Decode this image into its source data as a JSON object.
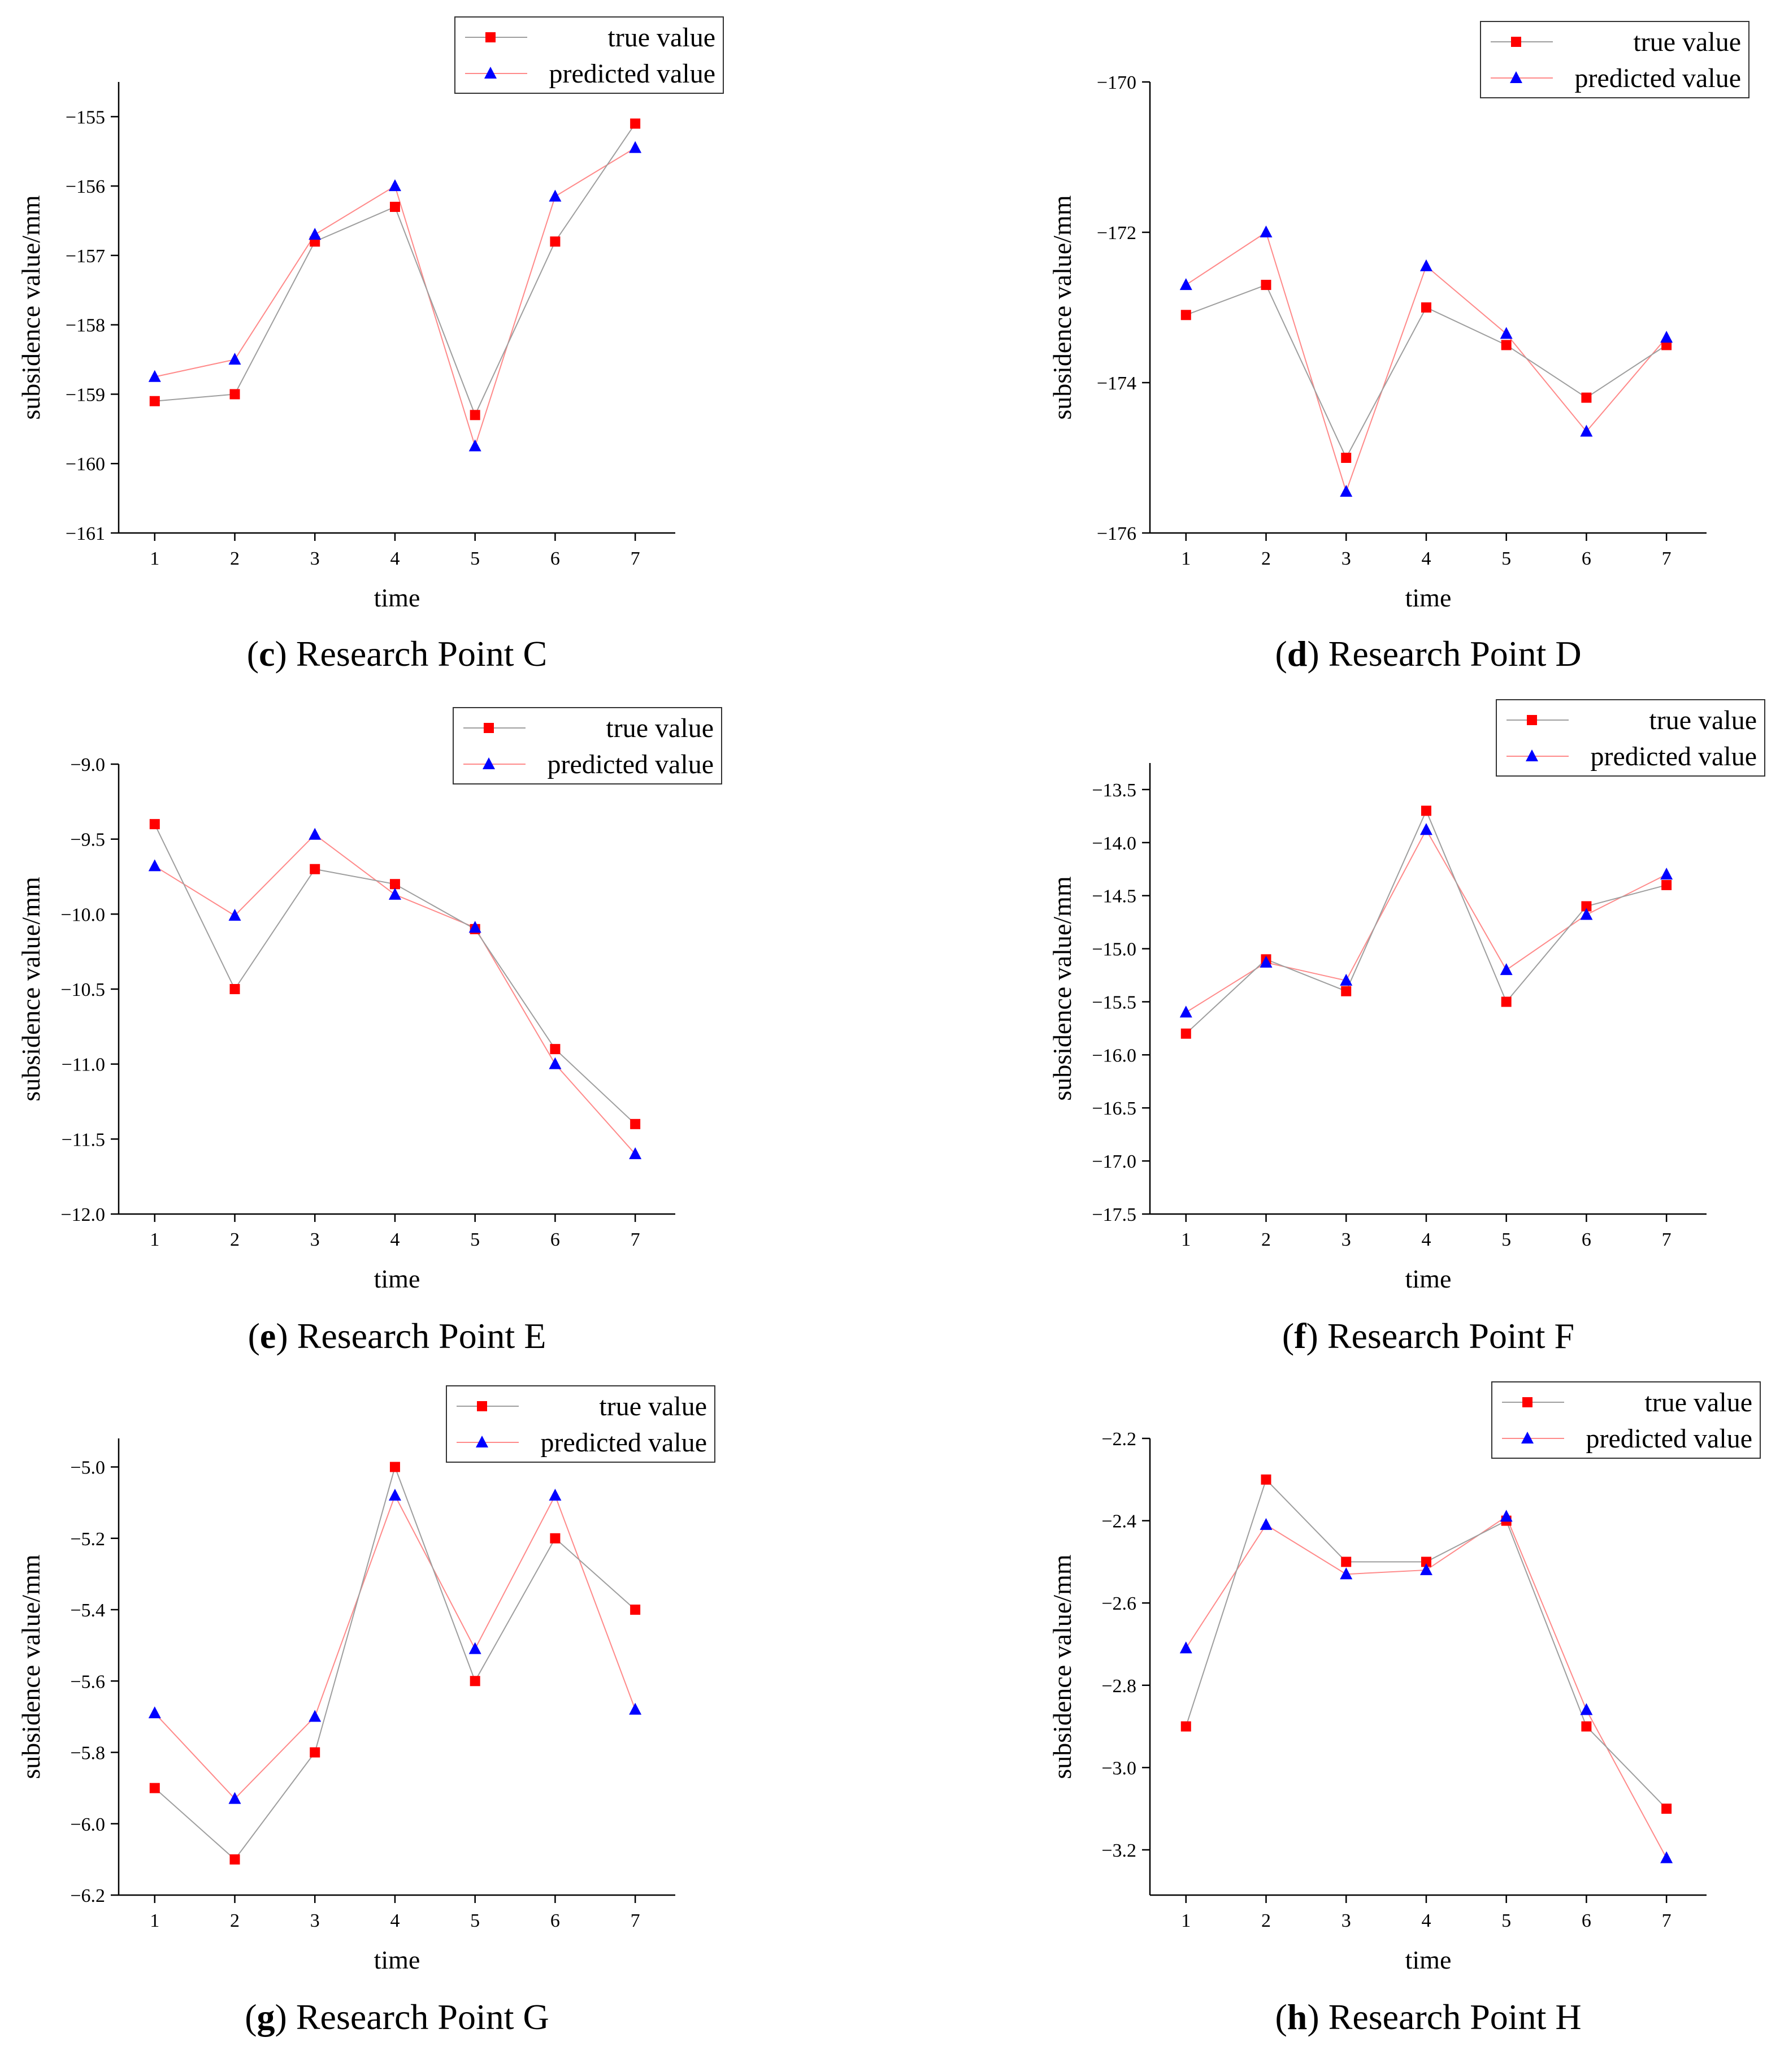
{
  "figure": {
    "title": ""
  },
  "chart_data": [
    {
      "type": "line",
      "panel": "c",
      "caption_letter": "c",
      "caption_text": "Research Point C",
      "xlabel": "time",
      "ylabel": "subsidence value/mm",
      "x": [
        1,
        2,
        3,
        4,
        5,
        6,
        7
      ],
      "xlim": [
        0.55,
        7.5
      ],
      "ylim": [
        -161,
        -154.5
      ],
      "yticks": [
        -161,
        -160,
        -159,
        -158,
        -157,
        -156,
        -155
      ],
      "ytick_decimals": 0,
      "legend_position": "top-right",
      "series": [
        {
          "name": "true value",
          "marker": "square",
          "color": "#ff0000",
          "line_color": "#9e9e9e",
          "values": [
            -159.1,
            -159.0,
            -156.8,
            -156.3,
            -159.3,
            -156.8,
            -155.1
          ]
        },
        {
          "name": "predicted value",
          "marker": "triangle",
          "color": "#0000ff",
          "line_color": "#ff8a8a",
          "values": [
            -158.75,
            -158.5,
            -156.7,
            -156.0,
            -159.75,
            -156.15,
            -155.45
          ]
        }
      ]
    },
    {
      "type": "line",
      "panel": "d",
      "caption_letter": "d",
      "caption_text": "Research Point D",
      "xlabel": "time",
      "ylabel": "subsidence value/mm",
      "x": [
        1,
        2,
        3,
        4,
        5,
        6,
        7
      ],
      "xlim": [
        0.55,
        7.5
      ],
      "ylim": [
        -176,
        -170
      ],
      "yticks": [
        -176,
        -174,
        -172,
        -170
      ],
      "ytick_decimals": 0,
      "legend_position": "top-right",
      "series": [
        {
          "name": "true value",
          "marker": "square",
          "color": "#ff0000",
          "line_color": "#9e9e9e",
          "values": [
            -173.1,
            -172.7,
            -175.0,
            -173.0,
            -173.5,
            -174.2,
            -173.5
          ]
        },
        {
          "name": "predicted value",
          "marker": "triangle",
          "color": "#0000ff",
          "line_color": "#ff8a8a",
          "values": [
            -172.7,
            -172.0,
            -175.45,
            -172.45,
            -173.35,
            -174.65,
            -173.4
          ]
        }
      ]
    },
    {
      "type": "line",
      "panel": "e",
      "caption_letter": "e",
      "caption_text": "Research Point E",
      "xlabel": "time",
      "ylabel": "subsidence value/mm",
      "x": [
        1,
        2,
        3,
        4,
        5,
        6,
        7
      ],
      "xlim": [
        0.55,
        7.5
      ],
      "ylim": [
        -12.0,
        -9.0
      ],
      "yticks": [
        -12.0,
        -11.5,
        -11.0,
        -10.5,
        -10.0,
        -9.5,
        -9.0
      ],
      "ytick_decimals": 1,
      "legend_position": "top-right",
      "series": [
        {
          "name": "true value",
          "marker": "square",
          "color": "#ff0000",
          "line_color": "#9e9e9e",
          "values": [
            -9.4,
            -10.5,
            -9.7,
            -9.8,
            -10.1,
            -10.9,
            -11.4
          ]
        },
        {
          "name": "predicted value",
          "marker": "triangle",
          "color": "#0000ff",
          "line_color": "#ff8a8a",
          "values": [
            -9.68,
            -10.01,
            -9.47,
            -9.87,
            -10.09,
            -11.0,
            -11.6
          ]
        }
      ]
    },
    {
      "type": "line",
      "panel": "f",
      "caption_letter": "f",
      "caption_text": "Research Point F",
      "xlabel": "time",
      "ylabel": "subsidence value/mm",
      "x": [
        1,
        2,
        3,
        4,
        5,
        6,
        7
      ],
      "xlim": [
        0.55,
        7.5
      ],
      "ylim": [
        -17.5,
        -13.25
      ],
      "yticks": [
        -17.5,
        -17.0,
        -16.5,
        -16.0,
        -15.5,
        -15.0,
        -14.5,
        -14.0,
        -13.5
      ],
      "ytick_decimals": 1,
      "legend_position": "top-right",
      "series": [
        {
          "name": "true value",
          "marker": "square",
          "color": "#ff0000",
          "line_color": "#9e9e9e",
          "values": [
            -15.8,
            -15.1,
            -15.4,
            -13.7,
            -15.5,
            -14.6,
            -14.4
          ]
        },
        {
          "name": "predicted value",
          "marker": "triangle",
          "color": "#0000ff",
          "line_color": "#ff8a8a",
          "values": [
            -15.6,
            -15.13,
            -15.3,
            -13.88,
            -15.2,
            -14.68,
            -14.3
          ]
        }
      ]
    },
    {
      "type": "line",
      "panel": "g",
      "caption_letter": "g",
      "caption_text": "Research Point G",
      "xlabel": "time",
      "ylabel": "subsidence value/mm",
      "x": [
        1,
        2,
        3,
        4,
        5,
        6,
        7
      ],
      "xlim": [
        0.55,
        7.5
      ],
      "ylim": [
        -6.2,
        -4.92
      ],
      "yticks": [
        -6.2,
        -6.0,
        -5.8,
        -5.6,
        -5.4,
        -5.2,
        -5.0
      ],
      "ytick_decimals": 1,
      "legend_position": "top-right",
      "series": [
        {
          "name": "true value",
          "marker": "square",
          "color": "#ff0000",
          "line_color": "#9e9e9e",
          "values": [
            -5.9,
            -6.1,
            -5.8,
            -5.0,
            -5.6,
            -5.2,
            -5.4
          ]
        },
        {
          "name": "predicted value",
          "marker": "triangle",
          "color": "#0000ff",
          "line_color": "#ff8a8a",
          "values": [
            -5.69,
            -5.93,
            -5.7,
            -5.08,
            -5.51,
            -5.08,
            -5.68
          ]
        }
      ]
    },
    {
      "type": "line",
      "panel": "h",
      "caption_letter": "h",
      "caption_text": "Research Point H",
      "xlabel": "time",
      "ylabel": "subsidence value/mm",
      "x": [
        1,
        2,
        3,
        4,
        5,
        6,
        7
      ],
      "xlim": [
        0.55,
        7.5
      ],
      "ylim": [
        -3.31,
        -2.2
      ],
      "yticks": [
        -3.2,
        -3.0,
        -2.8,
        -2.6,
        -2.4,
        -2.2
      ],
      "ytick_decimals": 1,
      "legend_position": "top-right",
      "series": [
        {
          "name": "true value",
          "marker": "square",
          "color": "#ff0000",
          "line_color": "#9e9e9e",
          "values": [
            -2.9,
            -2.3,
            -2.5,
            -2.5,
            -2.4,
            -2.9,
            -3.1
          ]
        },
        {
          "name": "predicted value",
          "marker": "triangle",
          "color": "#0000ff",
          "line_color": "#ff8a8a",
          "values": [
            -2.71,
            -2.41,
            -2.53,
            -2.52,
            -2.39,
            -2.86,
            -3.22
          ]
        }
      ]
    }
  ]
}
